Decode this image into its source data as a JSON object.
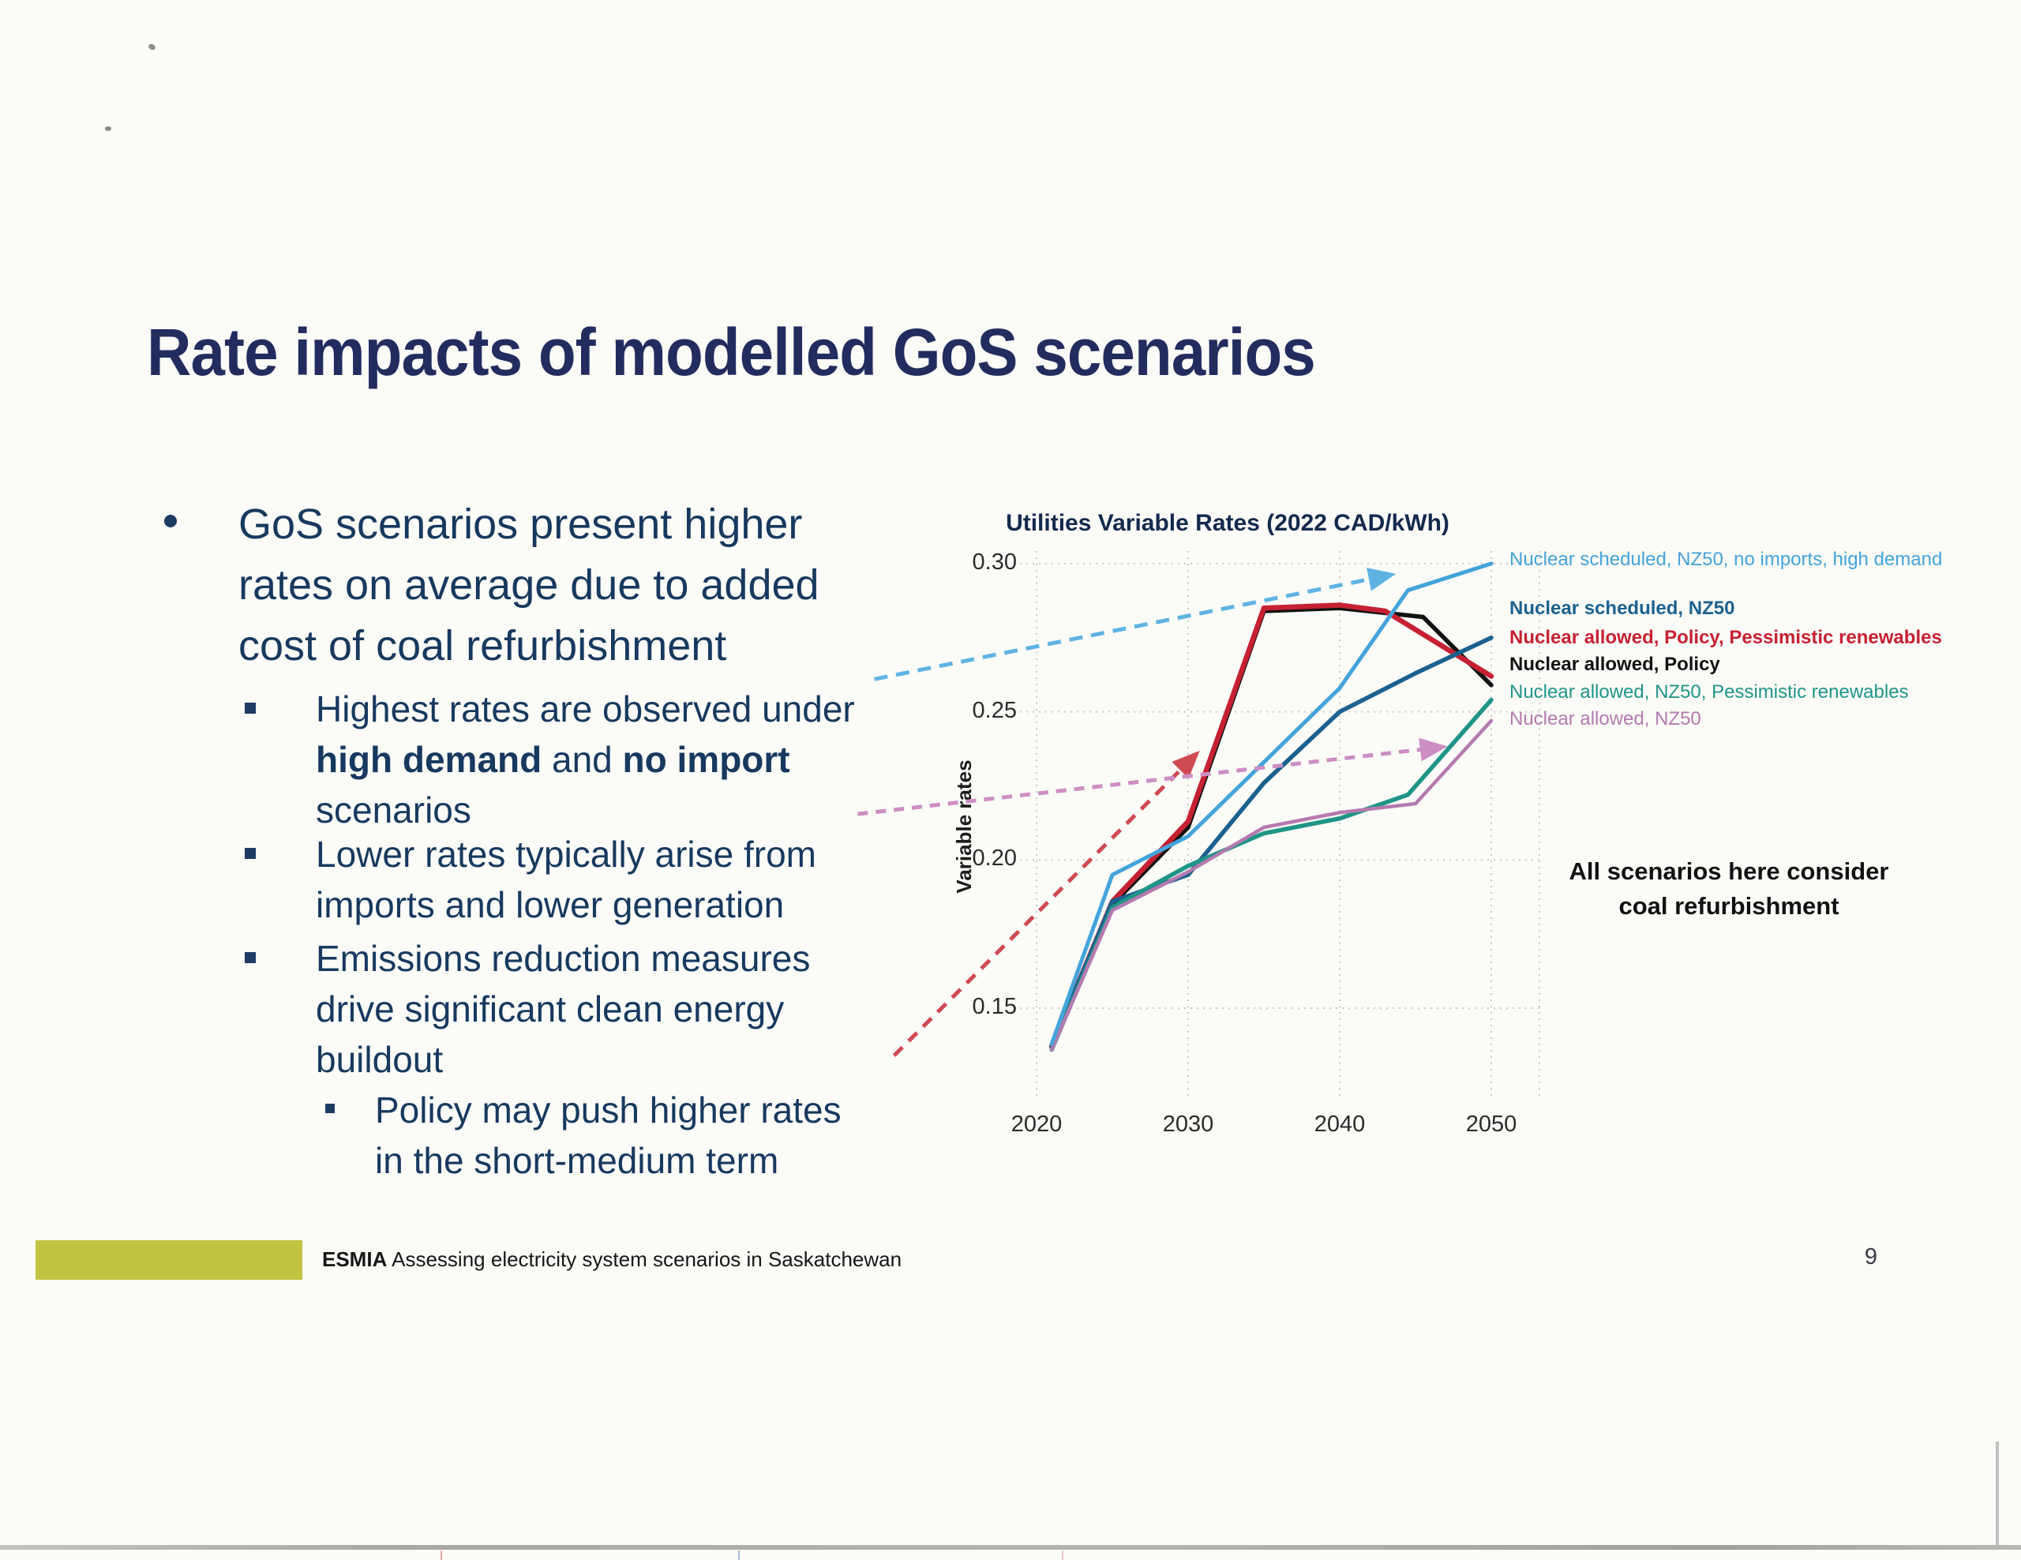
{
  "slide": {
    "title": "Rate impacts of modelled GoS scenarios",
    "bullets": {
      "level1": "GoS scenarios present higher\nrates on average due to added\ncost of coal refurbishment",
      "sub1_line1": "Highest rates are observed under",
      "sub1_bold1": "high demand",
      "sub1_mid": " and ",
      "sub1_bold2": "no import",
      "sub1_line3": "scenarios",
      "sub2": "Lower rates typically arise from\nimports and lower generation",
      "sub3": "Emissions reduction measures\ndrive significant clean energy\nbuildout",
      "sub4": "Policy may push higher rates\nin the short-medium term"
    },
    "footer": {
      "brand": "ESMIA",
      "text": " Assessing electricity system scenarios in Saskatchewan",
      "page_number": "9"
    }
  },
  "chart_data": {
    "type": "line",
    "title": "Utilities Variable Rates (2022 CAD/kWh)",
    "ylabel": "Variable rates",
    "xlabel": "",
    "xlim": [
      2020,
      2050
    ],
    "ylim": [
      0.13,
      0.305
    ],
    "grid": "dotted",
    "legend_position": "right",
    "x_ticks": [
      {
        "label": "2020",
        "value": 2020
      },
      {
        "label": "2030",
        "value": 2030
      },
      {
        "label": "2040",
        "value": 2040
      },
      {
        "label": "2050",
        "value": 2050
      }
    ],
    "y_ticks": [
      {
        "label": "0.30",
        "value": 0.3
      },
      {
        "label": "0.25",
        "value": 0.25
      },
      {
        "label": "0.20",
        "value": 0.2
      },
      {
        "label": "0.15",
        "value": 0.15
      }
    ],
    "series": [
      {
        "name": "Nuclear scheduled, NZ50, no imports, high demand",
        "color": "#44a4da",
        "legend_bold": false,
        "points": [
          [
            2021,
            0.138
          ],
          [
            2025,
            0.195
          ],
          [
            2030,
            0.208
          ],
          [
            2035,
            0.233
          ],
          [
            2040,
            0.258
          ],
          [
            2044.5,
            0.291
          ],
          [
            2050,
            0.3
          ]
        ]
      },
      {
        "name": "Nuclear scheduled, NZ50",
        "color": "#1b618f",
        "legend_bold": true,
        "points": [
          [
            2021,
            0.137
          ],
          [
            2025,
            0.186
          ],
          [
            2030,
            0.195
          ],
          [
            2035,
            0.226
          ],
          [
            2040,
            0.25
          ],
          [
            2045,
            0.263
          ],
          [
            2050,
            0.275
          ]
        ]
      },
      {
        "name": "Nuclear allowed, Policy, Pessimistic renewables",
        "color": "#c62132",
        "legend_bold": true,
        "points": [
          [
            2021,
            0.137
          ],
          [
            2025,
            0.186
          ],
          [
            2030,
            0.213
          ],
          [
            2035,
            0.285
          ],
          [
            2040,
            0.286
          ],
          [
            2043,
            0.284
          ],
          [
            2050,
            0.262
          ]
        ]
      },
      {
        "name": "Nuclear allowed, Policy",
        "color": "#121212",
        "legend_bold": true,
        "points": [
          [
            2021,
            0.137
          ],
          [
            2025,
            0.185
          ],
          [
            2030,
            0.211
          ],
          [
            2035,
            0.284
          ],
          [
            2040,
            0.285
          ],
          [
            2045.5,
            0.282
          ],
          [
            2050,
            0.259
          ]
        ]
      },
      {
        "name": "Nuclear allowed, NZ50, Pessimistic renewables",
        "color": "#1f9587",
        "legend_bold": false,
        "points": [
          [
            2021,
            0.136
          ],
          [
            2025,
            0.184
          ],
          [
            2030,
            0.198
          ],
          [
            2035,
            0.209
          ],
          [
            2040,
            0.214
          ],
          [
            2044.5,
            0.222
          ],
          [
            2050,
            0.254
          ]
        ]
      },
      {
        "name": "Nuclear allowed, NZ50",
        "color": "#b57ab0",
        "legend_bold": false,
        "points": [
          [
            2021,
            0.136
          ],
          [
            2025,
            0.183
          ],
          [
            2030,
            0.196
          ],
          [
            2035,
            0.211
          ],
          [
            2040,
            0.216
          ],
          [
            2045,
            0.219
          ],
          [
            2050,
            0.247
          ]
        ]
      }
    ],
    "annotations": {
      "note": "All scenarios here consider\ncoal refurbishment",
      "arrows": [
        {
          "name": "trend-arrow-high-demand",
          "color": "#5fb3e2",
          "from": [
            2009.3,
            0.261
          ],
          "to": [
            2043.2,
            0.296
          ],
          "dash": "17 11"
        },
        {
          "name": "trend-arrow-policy",
          "color": "#d04a52",
          "from": [
            2010.6,
            0.134
          ],
          "to": [
            2030.4,
            0.235
          ],
          "dash": "15 11"
        },
        {
          "name": "trend-arrow-nz50",
          "color": "#cc8ec3",
          "from": [
            2008.2,
            0.2155
          ],
          "to": [
            2046.6,
            0.238
          ],
          "dash": "13 10"
        }
      ]
    }
  }
}
